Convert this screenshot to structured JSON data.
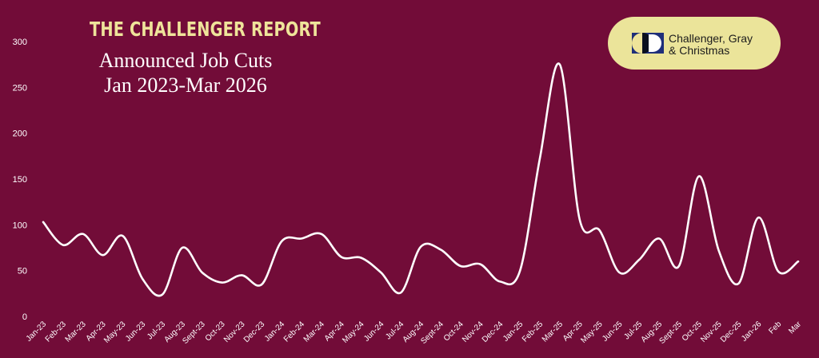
{
  "header": {
    "report_title": "THE CHALLENGER REPORT",
    "chart_title_line1": "Announced Job Cuts",
    "chart_title_line2": "Jan 2023-Mar 2026"
  },
  "logo": {
    "icon": "challenger-logo-icon",
    "line1": "Challenger, Gray",
    "line2": "& Christmas"
  },
  "colors": {
    "background": "#720c38",
    "line": "#ffffff",
    "accent": "#efe49a"
  },
  "chart_data": {
    "type": "line",
    "title": "Announced Job Cuts Jan 2023-Mar 2026",
    "xlabel": "",
    "ylabel": "",
    "ylim": [
      0,
      300
    ],
    "yticks": [
      0,
      50,
      100,
      150,
      200,
      250,
      300
    ],
    "grid": false,
    "legend": "none",
    "categories": [
      "Jan-23",
      "Feb-23",
      "Mar-23",
      "Apr-23",
      "May-23",
      "Jun-23",
      "Jul-23",
      "Aug-23",
      "Sept-23",
      "Oct-23",
      "Nov-23",
      "Dec-23",
      "Jan-24",
      "Feb-24",
      "Mar-24",
      "Apr-24",
      "May-24",
      "Jun-24",
      "Jul-24",
      "Aug-24",
      "Sept-24",
      "Oct-24",
      "Nov-24",
      "Dec-24",
      "Jan-25",
      "Feb-25",
      "Mar-25",
      "Apr-25",
      "May-25",
      "Jun-25",
      "Jul-25",
      "Aug-25",
      "Sept-25",
      "Oct-25",
      "Nov-25",
      "Dec-25",
      "Jan-26",
      "Feb",
      "Mar"
    ],
    "series": [
      {
        "values": [
          103,
          78,
          90,
          67,
          88,
          41,
          24,
          75,
          48,
          37,
          45,
          35,
          82,
          85,
          90,
          65,
          64,
          48,
          26,
          76,
          73,
          55,
          57,
          38,
          50,
          173,
          275,
          106,
          94,
          48,
          62,
          85,
          55,
          153,
          72,
          36,
          108,
          49,
          60
        ]
      }
    ]
  }
}
